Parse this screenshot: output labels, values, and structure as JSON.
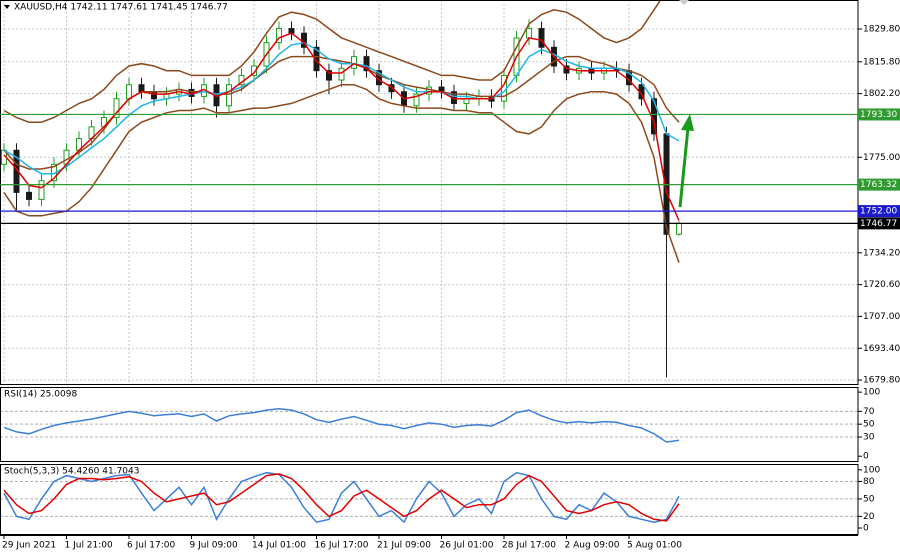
{
  "chart_data": [
    {
      "type": "candlestick",
      "title": "XAUUSD,H4  1742.11 1747.61 1741.45 1746.77",
      "categories": [
        "29 Jun 2021",
        null,
        null,
        null,
        null,
        "1 Jul 21:00",
        null,
        null,
        null,
        null,
        "6 Jul 17:00",
        null,
        null,
        null,
        null,
        "9 Jul 09:00",
        null,
        null,
        null,
        null,
        "14 Jul 01:00",
        null,
        null,
        null,
        null,
        "16 Jul 17:00",
        null,
        null,
        null,
        null,
        "21 Jul 09:00",
        null,
        null,
        null,
        null,
        "26 Jul 01:00",
        null,
        null,
        null,
        null,
        "28 Jul 17:00",
        null,
        null,
        null,
        null,
        "2 Aug 09:00",
        null,
        null,
        null,
        null,
        "5 Aug 01:00",
        null,
        null,
        null,
        null
      ],
      "open": [
        1772,
        1778,
        1760,
        1757,
        1765,
        1772,
        1778,
        1783,
        1788,
        1792,
        1800,
        1806,
        1803,
        1800,
        1802,
        1804,
        1801,
        1806,
        1797,
        1806,
        1810,
        1814,
        1824,
        1830,
        1828,
        1822,
        1812,
        1808,
        1813,
        1818,
        1812,
        1806,
        1803,
        1797,
        1802,
        1805,
        1803,
        1798,
        1800,
        1801,
        1799,
        1810,
        1826,
        1830,
        1822,
        1814,
        1811,
        1813,
        1811,
        1813,
        1812,
        1806,
        1800,
        1785,
        1742.11
      ],
      "high": [
        1781,
        1781,
        1763,
        1768,
        1775,
        1781,
        1786,
        1791,
        1795,
        1803,
        1809,
        1809,
        1806,
        1805,
        1807,
        1807,
        1809,
        1809,
        1809,
        1813,
        1817,
        1827,
        1833,
        1833,
        1831,
        1825,
        1815,
        1816,
        1821,
        1821,
        1815,
        1809,
        1806,
        1805,
        1808,
        1808,
        1806,
        1803,
        1804,
        1804,
        1813,
        1829,
        1834,
        1833,
        1825,
        1817,
        1816,
        1816,
        1816,
        1816,
        1815,
        1809,
        1803,
        1788,
        1747.61
      ],
      "low": [
        1769,
        1752,
        1754,
        1754,
        1762,
        1769,
        1775,
        1780,
        1785,
        1789,
        1797,
        1800,
        1797,
        1797,
        1799,
        1798,
        1798,
        1792,
        1794,
        1803,
        1807,
        1811,
        1821,
        1825,
        1819,
        1809,
        1802,
        1805,
        1810,
        1809,
        1803,
        1800,
        1794,
        1794,
        1799,
        1800,
        1795,
        1795,
        1797,
        1796,
        1796,
        1807,
        1823,
        1819,
        1811,
        1808,
        1808,
        1808,
        1808,
        1809,
        1803,
        1797,
        1782,
        1681,
        1741.45
      ],
      "close": [
        1778,
        1760,
        1757,
        1765,
        1772,
        1778,
        1783,
        1788,
        1792,
        1800,
        1806,
        1803,
        1800,
        1802,
        1804,
        1801,
        1806,
        1797,
        1806,
        1810,
        1814,
        1824,
        1830,
        1828,
        1822,
        1812,
        1808,
        1813,
        1818,
        1812,
        1806,
        1803,
        1797,
        1802,
        1805,
        1803,
        1798,
        1800,
        1801,
        1799,
        1810,
        1826,
        1830,
        1822,
        1814,
        1811,
        1813,
        1811,
        1813,
        1812,
        1806,
        1800,
        1785,
        1742.11,
        1746.77
      ],
      "up_color": "#1f9e1f",
      "down_color": "#1a1a1a",
      "series": [
        {
          "color": "#8b4a1c",
          "values": [
            1795,
            1792,
            1790,
            1790,
            1792,
            1795,
            1798,
            1800,
            1804,
            1810,
            1814,
            1815,
            1814,
            1812,
            1812,
            1810,
            1810,
            1810,
            1810,
            1814,
            1820,
            1828,
            1835,
            1837,
            1836,
            1834,
            1830,
            1826,
            1824,
            1822,
            1820,
            1818,
            1816,
            1814,
            1812,
            1810,
            1810,
            1809,
            1808,
            1808,
            1812,
            1822,
            1832,
            1836,
            1838,
            1837,
            1834,
            1830,
            1826,
            1824,
            1826,
            1830,
            1838,
            1846,
            1850
          ]
        },
        {
          "color": "#8b4a1c",
          "values": [
            1778,
            1772,
            1770,
            1770,
            1771,
            1774,
            1777,
            1781,
            1787,
            1794,
            1800,
            1803,
            1803,
            1803,
            1804,
            1803,
            1803,
            1802,
            1802,
            1804,
            1808,
            1812,
            1816,
            1818,
            1818,
            1818,
            1817,
            1816,
            1815,
            1813,
            1810,
            1808,
            1806,
            1805,
            1804,
            1803,
            1802,
            1802,
            1801,
            1801,
            1801,
            1804,
            1808,
            1812,
            1816,
            1818,
            1818,
            1816,
            1815,
            1813,
            1812,
            1810,
            1806,
            1796,
            1790
          ]
        },
        {
          "color": "#8b4a1c",
          "values": [
            1760,
            1752,
            1750,
            1750,
            1751,
            1752,
            1756,
            1762,
            1770,
            1778,
            1786,
            1790,
            1792,
            1794,
            1795,
            1795,
            1796,
            1794,
            1794,
            1795,
            1796,
            1796,
            1797,
            1798,
            1800,
            1802,
            1804,
            1806,
            1806,
            1804,
            1800,
            1798,
            1797,
            1796,
            1796,
            1796,
            1795,
            1795,
            1794,
            1794,
            1790,
            1786,
            1785,
            1788,
            1795,
            1800,
            1802,
            1803,
            1803,
            1802,
            1798,
            1790,
            1775,
            1745,
            1730
          ]
        },
        {
          "color": "#22b5e8",
          "values": [
            1778,
            1775,
            1771,
            1768,
            1768,
            1771,
            1775,
            1779,
            1783,
            1788,
            1793,
            1797,
            1799,
            1800,
            1801,
            1802,
            1803,
            1802,
            1803,
            1805,
            1808,
            1813,
            1819,
            1823,
            1824,
            1821,
            1817,
            1815,
            1815,
            1814,
            1811,
            1808,
            1805,
            1803,
            1803,
            1803,
            1801,
            1801,
            1800,
            1800,
            1803,
            1810,
            1818,
            1821,
            1819,
            1816,
            1814,
            1813,
            1813,
            1813,
            1811,
            1807,
            1799,
            1785,
            1782
          ]
        },
        {
          "color": "#e00000",
          "values": [
            1776,
            1770,
            1763,
            1762,
            1766,
            1772,
            1778,
            1783,
            1788,
            1794,
            1800,
            1803,
            1802,
            1802,
            1803,
            1802,
            1804,
            1801,
            1803,
            1807,
            1811,
            1819,
            1826,
            1828,
            1824,
            1816,
            1811,
            1811,
            1815,
            1813,
            1808,
            1805,
            1800,
            1801,
            1803,
            1803,
            1800,
            1800,
            1800,
            1800,
            1806,
            1818,
            1826,
            1825,
            1818,
            1813,
            1812,
            1812,
            1812,
            1812,
            1808,
            1802,
            1790,
            1760,
            1748
          ]
        }
      ],
      "hlines": [
        {
          "value": 1793.3,
          "label": "1793.30",
          "color": "#2f9a2f"
        },
        {
          "value": 1763.32,
          "label": "1763.32",
          "color": "#2f9a2f"
        },
        {
          "value": 1752,
          "label": "1752.00",
          "color": "#1a1acc"
        },
        {
          "value": 1746.77,
          "label": "1746.77",
          "color": "#000000"
        }
      ],
      "ylim": [
        1677.7,
        1842.2
      ],
      "yticks": [
        {
          "value": 1829.8,
          "label": "1829.80"
        },
        {
          "value": 1815.8,
          "label": "1815.80"
        },
        {
          "value": 1802.2,
          "label": "1802.20"
        },
        {
          "value": 1775,
          "label": "1775.00"
        },
        {
          "value": 1734.2,
          "label": "1734.20"
        },
        {
          "value": 1720.6,
          "label": "1720.60"
        },
        {
          "value": 1707,
          "label": "1707.00"
        },
        {
          "value": 1693.4,
          "label": "1693.40"
        },
        {
          "value": 1679.8,
          "label": "1679.80"
        }
      ],
      "grid": true
    },
    {
      "type": "line",
      "title": "RSI(14) 25.0098",
      "series": [
        {
          "color": "#3d7fd6",
          "values": [
            45,
            38,
            35,
            42,
            48,
            52,
            55,
            58,
            62,
            66,
            70,
            67,
            63,
            65,
            66,
            62,
            66,
            55,
            63,
            66,
            68,
            72,
            74,
            72,
            66,
            57,
            53,
            58,
            62,
            56,
            50,
            48,
            43,
            48,
            52,
            50,
            45,
            48,
            49,
            47,
            56,
            68,
            72,
            63,
            56,
            52,
            54,
            52,
            54,
            53,
            48,
            44,
            35,
            22,
            25.0098
          ]
        }
      ],
      "levels": [
        70,
        50,
        30
      ],
      "ylim": [
        -9,
        108
      ],
      "yticks": [
        100,
        70,
        50,
        30,
        0
      ]
    },
    {
      "type": "line",
      "title": "Stoch(5,3,3) 54.4260 41.7043",
      "series": [
        {
          "color": "#3d7fd6",
          "values": [
            60,
            20,
            15,
            50,
            80,
            90,
            85,
            80,
            85,
            90,
            92,
            60,
            30,
            50,
            70,
            40,
            70,
            15,
            50,
            80,
            88,
            95,
            92,
            70,
            35,
            10,
            15,
            60,
            80,
            50,
            20,
            30,
            10,
            50,
            80,
            60,
            20,
            40,
            50,
            25,
            80,
            95,
            90,
            50,
            20,
            15,
            40,
            30,
            60,
            45,
            20,
            15,
            10,
            15,
            54.426
          ]
        },
        {
          "color": "#e00000",
          "values": [
            65,
            40,
            25,
            30,
            50,
            75,
            85,
            85,
            83,
            85,
            88,
            80,
            60,
            45,
            50,
            55,
            60,
            40,
            45,
            60,
            75,
            90,
            93,
            85,
            65,
            40,
            20,
            30,
            55,
            65,
            50,
            35,
            20,
            30,
            50,
            65,
            50,
            35,
            40,
            40,
            50,
            75,
            90,
            80,
            55,
            30,
            25,
            30,
            40,
            45,
            40,
            25,
            15,
            12,
            41.7043
          ]
        }
      ],
      "levels": [
        80,
        50,
        20
      ],
      "ylim": [
        -12,
        110
      ],
      "yticks": [
        100,
        80,
        50,
        20,
        0
      ]
    }
  ]
}
